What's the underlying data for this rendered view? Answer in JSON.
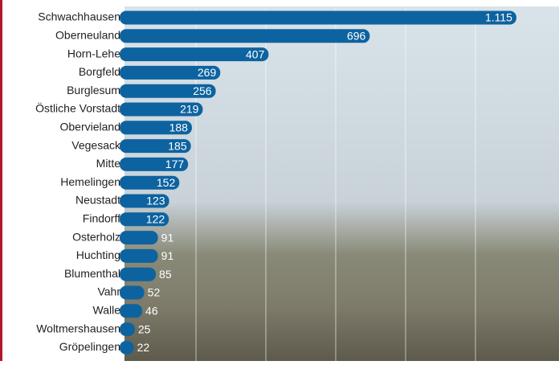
{
  "chart_data": {
    "type": "bar",
    "orientation": "horizontal",
    "categories": [
      "Schwachhausen",
      "Oberneuland",
      "Horn-Lehe",
      "Borgfeld",
      "Burglesum",
      "Östliche Vorstadt",
      "Obervieland",
      "Vegesack",
      "Mitte",
      "Hemelingen",
      "Neustadt",
      "Findorff",
      "Osterholz",
      "Huchting",
      "Blumenthal",
      "Vahr",
      "Walle",
      "Woltmershausen",
      "Gröpelingen"
    ],
    "values": [
      1115,
      696,
      407,
      269,
      256,
      219,
      188,
      185,
      177,
      152,
      123,
      122,
      91,
      91,
      85,
      52,
      46,
      25,
      22
    ],
    "value_labels": [
      "1.115",
      "696",
      "407",
      "269",
      "256",
      "219",
      "188",
      "185",
      "177",
      "152",
      "123",
      "122",
      "91",
      "91",
      "85",
      "52",
      "46",
      "25",
      "22"
    ],
    "color": "#0d63a0",
    "xlim": [
      0,
      1200
    ]
  }
}
